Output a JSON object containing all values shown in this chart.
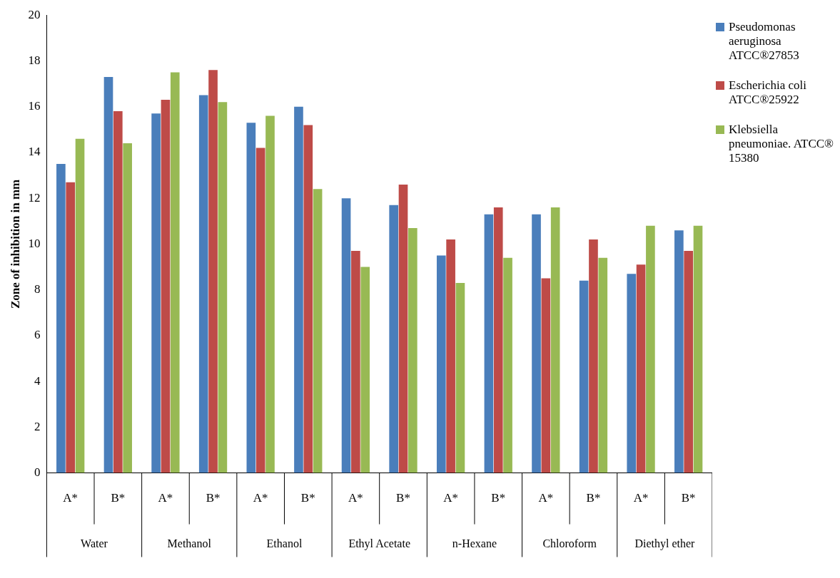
{
  "chart_data": {
    "type": "bar",
    "ylabel": "Zone of inhibition in mm",
    "categories": [
      "A*",
      "B*",
      "A*",
      "B*",
      "A*",
      "B*",
      "A*",
      "B*",
      "A*",
      "B*",
      "A*",
      "B*",
      "A*",
      "B*"
    ],
    "annotations": [
      "Water",
      "Methanol",
      "Ethanol",
      "Ethyl Acetate",
      "n-Hexane",
      "Chloroform",
      "Diethyl ether"
    ],
    "series": [
      {
        "name": "Pseudomonas aeruginosa ATCC®27853",
        "color": "#4a7ebb",
        "values": [
          13.5,
          17.3,
          15.7,
          16.5,
          15.3,
          16.0,
          12.0,
          11.7,
          9.5,
          11.3,
          11.3,
          8.4,
          8.7,
          10.6
        ]
      },
      {
        "name": "Escherichia coli ATCC®25922",
        "color": "#be4b48",
        "values": [
          12.7,
          15.8,
          16.3,
          17.6,
          14.2,
          15.2,
          9.7,
          12.6,
          10.2,
          11.6,
          8.5,
          10.2,
          9.1,
          9.7
        ]
      },
      {
        "name": "Klebsiella pneumoniae. ATCC® 15380",
        "color": "#98b954",
        "values": [
          14.6,
          14.4,
          17.5,
          16.2,
          15.6,
          12.4,
          9.0,
          10.7,
          8.3,
          9.4,
          11.6,
          9.4,
          10.8,
          10.8
        ]
      }
    ],
    "ylim": [
      0,
      20
    ],
    "yticks": [
      0,
      2,
      4,
      6,
      8,
      10,
      12,
      14,
      16,
      18,
      20
    ],
    "grid": false,
    "legend": "top right"
  }
}
